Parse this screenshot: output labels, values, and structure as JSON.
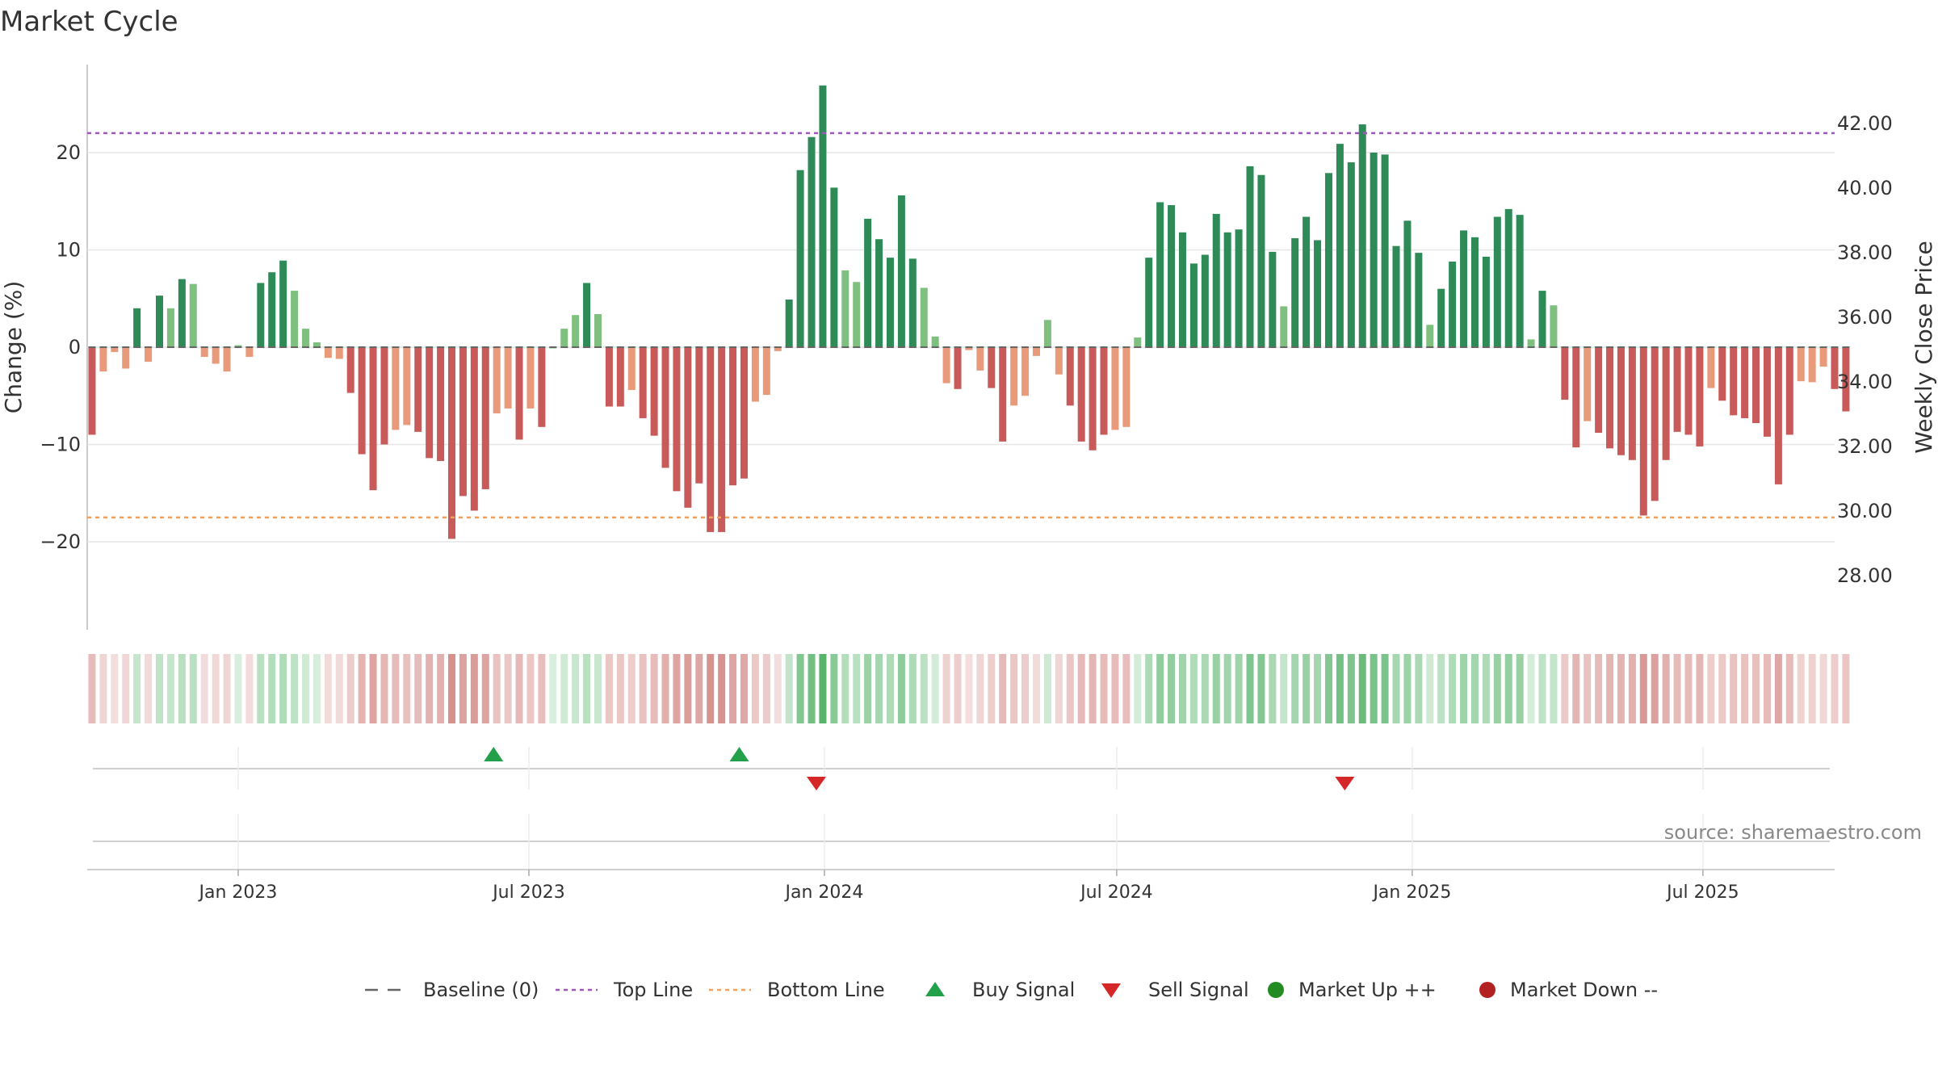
{
  "title": "Market Cycle",
  "source": "source: sharemaestro.com",
  "colors": {
    "strong_up": "#2e8b57",
    "weak_up": "#7fbf7f",
    "strong_down": "#c85a5a",
    "weak_down": "#e89a7a",
    "top_line": "#9b59b6",
    "bottom_line": "#f0a060",
    "buy": "#22a04a",
    "sell": "#d62728",
    "market_up": "#228b22",
    "market_down": "#b22222",
    "baseline": "#666666"
  },
  "chart_data": {
    "type": "bar",
    "title": "Market Cycle",
    "ylabel": "Change (%)",
    "y2label": "Weekly Close Price",
    "ylim": [
      -29,
      29
    ],
    "y2lim": [
      26.3,
      43.3
    ],
    "yticks": [
      -20,
      -10,
      0,
      10,
      20
    ],
    "y2ticks": [
      "28.00",
      "30.00",
      "32.00",
      "34.00",
      "36.00",
      "38.00",
      "40.00",
      "42.00"
    ],
    "y2tick_values": [
      28,
      30,
      32,
      34,
      36,
      38,
      40,
      42
    ],
    "xlim": [
      "2022-09-29",
      "2025-09-21"
    ],
    "xticks": [
      {
        "date": "2023-01-01",
        "label": "Jan 2023"
      },
      {
        "date": "2023-07-01",
        "label": "Jul 2023"
      },
      {
        "date": "2024-01-01",
        "label": "Jan 2024"
      },
      {
        "date": "2024-07-01",
        "label": "Jul 2024"
      },
      {
        "date": "2025-01-01",
        "label": "Jan 2025"
      },
      {
        "date": "2025-07-01",
        "label": "Jul 2025"
      }
    ],
    "start_date": "2022-10-02",
    "top_line": 22,
    "bottom_line": -17.5,
    "values": [
      -9,
      -2.5,
      -0.5,
      -2.2,
      4,
      -1.5,
      5.3,
      4,
      7,
      6.5,
      -1,
      -1.7,
      -2.5,
      0.2,
      -1,
      6.6,
      7.7,
      8.9,
      5.8,
      1.9,
      0.5,
      -1.1,
      -1.2,
      -4.7,
      -11,
      -14.7,
      -10,
      -8.5,
      -8,
      -8.7,
      -11.4,
      -11.7,
      -19.7,
      -15.3,
      -16.8,
      -14.6,
      -6.8,
      -6.3,
      -9.5,
      -6.3,
      -8.2,
      0,
      1.9,
      3.3,
      6.6,
      3.4,
      -6.1,
      -6.1,
      -4.4,
      -7.3,
      -9.1,
      -12.4,
      -14.8,
      -16.5,
      -14,
      -19,
      -19,
      -14.2,
      -13.5,
      -5.6,
      -4.9,
      -0.4,
      4.9,
      18.2,
      21.6,
      26.9,
      16.4,
      7.9,
      6.7,
      13.2,
      11.1,
      9.2,
      15.6,
      9.1,
      6.1,
      1.1,
      -3.7,
      -4.3,
      -0.3,
      -2.4,
      -4.2,
      -9.7,
      -6,
      -5,
      -0.9,
      2.8,
      -2.8,
      -6,
      -9.7,
      -10.6,
      -9,
      -8.5,
      -8.2,
      1,
      9.2,
      14.9,
      14.6,
      11.8,
      8.6,
      9.5,
      13.7,
      11.8,
      12.1,
      18.6,
      17.7,
      9.8,
      4.2,
      11.2,
      13.4,
      11,
      17.9,
      20.9,
      19,
      22.9,
      20,
      19.8,
      10.4,
      13,
      9.7,
      2.3,
      6,
      8.8,
      12,
      11.3,
      9.3,
      13.4,
      14.2,
      13.6,
      0.8,
      5.8,
      4.3,
      -5.4,
      -10.3,
      -7.6,
      -8.8,
      -10.4,
      -11.1,
      -11.6,
      -17.3,
      -15.8,
      -11.6,
      -8.7,
      -9,
      -10.2,
      -4.2,
      -5.5,
      -7,
      -7.3,
      -7.8,
      -9.2,
      -14.1,
      -9,
      -3.5,
      -3.6,
      -2,
      -4.3,
      -6.6
    ],
    "strength_band": "alpha ~ |change| per week, green for positive, red for negative",
    "buy_signals": [
      "2023-06-09",
      "2023-11-09"
    ],
    "sell_signals": [
      "2023-12-27",
      "2024-11-20"
    ],
    "legend": [
      {
        "key": "baseline",
        "label": "Baseline (0)"
      },
      {
        "key": "top",
        "label": "Top Line"
      },
      {
        "key": "bottom",
        "label": "Bottom Line"
      },
      {
        "key": "buy",
        "label": "Buy Signal"
      },
      {
        "key": "sell",
        "label": "Sell Signal"
      },
      {
        "key": "up",
        "label": "Market Up ++"
      },
      {
        "key": "down",
        "label": "Market Down --"
      }
    ]
  }
}
